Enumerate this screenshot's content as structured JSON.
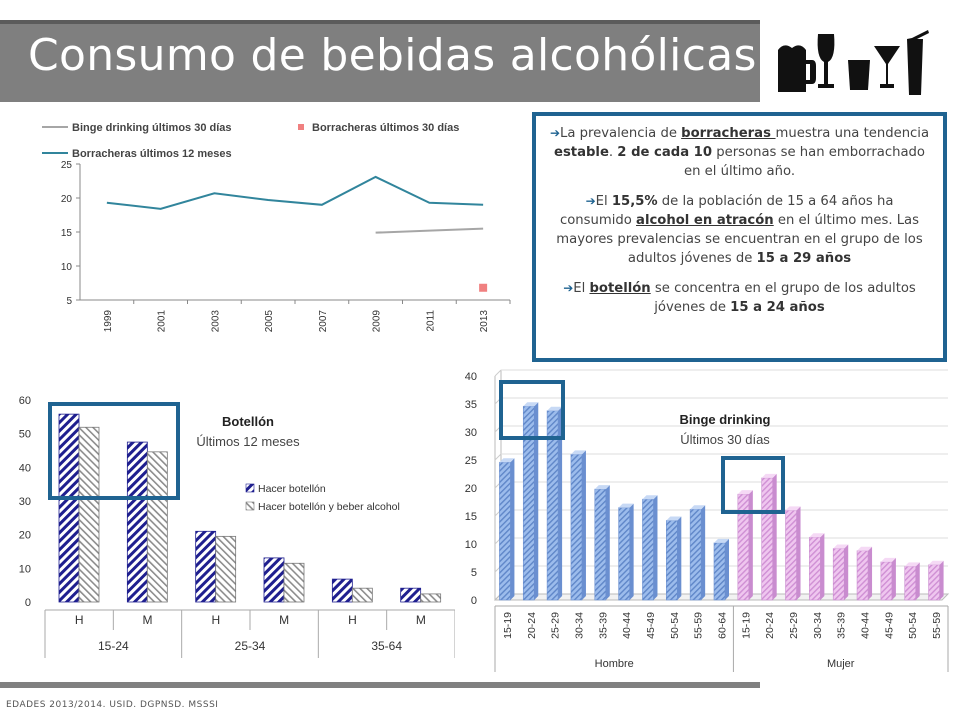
{
  "page_title": "Consumo de bebidas alcohólicas",
  "footer": "EDADES 2013/2014. USID. DGPNSD. MSSSI",
  "info": {
    "p1": {
      "a": "La prevalencia de ",
      "b": "borracheras ",
      "c": "muestra una tendencia ",
      "d": "estable",
      "e": ". ",
      "f": "2 de cada 10",
      "g": " personas se han emborrachado en el último año."
    },
    "p2": {
      "a": "El ",
      "b": "15,5%",
      "c": " de la población de 15 a 64 años ha consumido ",
      "d": "alcohol en atracón",
      "e": " en el último mes. Las mayores prevalencias se encuentran en el grupo de los adultos jóvenes de ",
      "f": "15 a 29 años"
    },
    "p3": {
      "a": "El ",
      "b": "botellón",
      "c": " se concentra en el grupo de los adultos jóvenes de ",
      "d": "15 a 24 años"
    }
  },
  "colors": {
    "teal_line": "#31859c",
    "gray_line": "#a6a6a6",
    "pink_marker": "#f08080",
    "navy_hatch": "#1f1f8f",
    "gray_hatch": "#808080",
    "blue_bar": "#7fa6e0",
    "pink_bar": "#e6b0e6",
    "highlight_box": "#1f6391"
  },
  "chart_data": [
    {
      "type": "line",
      "title": "",
      "x": [
        "1999",
        "2001",
        "2003",
        "2005",
        "2007",
        "2009",
        "2011",
        "2013"
      ],
      "ylim": [
        5,
        25
      ],
      "yticks": [
        "5",
        "10",
        "15",
        "20",
        "25"
      ],
      "legend": [
        "Binge drinking últimos 30 días",
        "Borracheras últimos 30 días",
        "Borracheras últimos 12 meses"
      ],
      "legend_placement": "top",
      "series": [
        {
          "name": "Binge drinking últimos 30 días",
          "values": [
            null,
            null,
            null,
            null,
            null,
            14.9,
            15.2,
            15.5
          ]
        },
        {
          "name": "Borracheras últimos 30 días",
          "values": [
            null,
            null,
            null,
            null,
            null,
            null,
            null,
            6.8
          ]
        },
        {
          "name": "Borracheras últimos 12 meses",
          "values": [
            19.3,
            18.4,
            20.7,
            19.7,
            19.0,
            23.1,
            19.3,
            19.0
          ]
        }
      ]
    },
    {
      "type": "bar",
      "title": "Botellón",
      "subtitle": "Últimos 12 meses",
      "categories": [
        "H",
        "M",
        "H",
        "M",
        "H",
        "M"
      ],
      "groups": [
        "15-24",
        "25-34",
        "35-64"
      ],
      "ylim": [
        0,
        60
      ],
      "yticks": [
        "0",
        "10",
        "20",
        "30",
        "40",
        "50",
        "60"
      ],
      "legend_placement": "right",
      "series": [
        {
          "name": "Hacer botellón",
          "values": [
            55.8,
            47.5,
            21.0,
            13.1,
            6.8,
            4.1
          ]
        },
        {
          "name": "Hacer botellón y beber alcohol",
          "values": [
            51.9,
            44.6,
            19.5,
            11.5,
            4.1,
            2.4
          ]
        }
      ]
    },
    {
      "type": "bar",
      "title": "Binge drinking",
      "subtitle": "Últimos 30 días",
      "groups": [
        "Hombre",
        "Mujer"
      ],
      "ylim": [
        0,
        40
      ],
      "yticks": [
        "0",
        "5",
        "10",
        "15",
        "20",
        "25",
        "30",
        "35",
        "40"
      ],
      "series": [
        {
          "name": "Hombre",
          "categories": [
            "15-19",
            "20-24",
            "25-29",
            "30-34",
            "35-39",
            "40-44",
            "45-49",
            "50-54",
            "55-59",
            "60-64"
          ],
          "values": [
            24.6,
            34.6,
            33.8,
            26.0,
            19.8,
            16.5,
            18.0,
            14.2,
            16.2,
            10.2
          ]
        },
        {
          "name": "Mujer",
          "categories": [
            "15-19",
            "20-24",
            "25-29",
            "30-34",
            "35-39",
            "40-44",
            "45-49",
            "50-54",
            "55-59"
          ],
          "values": [
            18.9,
            21.8,
            16.0,
            11.2,
            9.2,
            8.8,
            6.8,
            6.0,
            6.3
          ]
        }
      ]
    }
  ]
}
